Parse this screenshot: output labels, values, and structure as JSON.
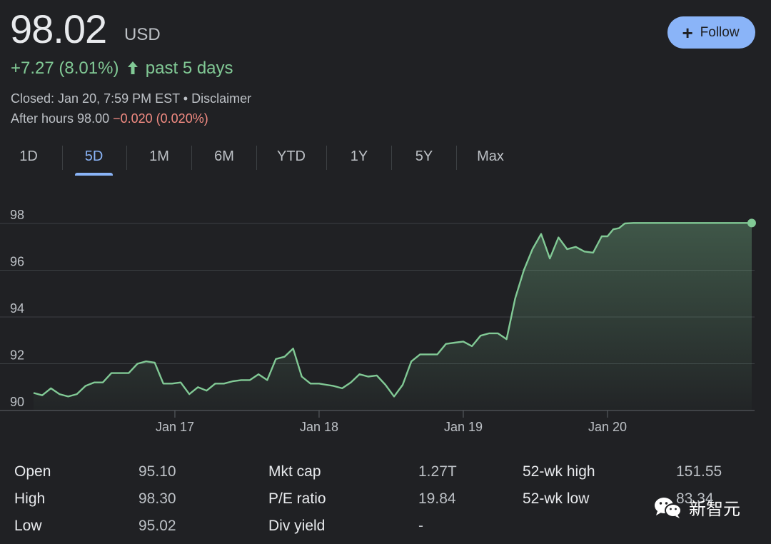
{
  "quote": {
    "price": "98.02",
    "currency": "USD",
    "change": "+7.27 (8.01%)",
    "period": "past 5 days",
    "closed_text": "Closed: Jan 20, 7:59 PM EST • Disclaimer",
    "after_hours_label": "After hours 98.00",
    "after_hours_change": "−0.020 (0.020%)"
  },
  "follow_button": {
    "label": "Follow"
  },
  "tabs": [
    {
      "label": "1D"
    },
    {
      "label": "5D"
    },
    {
      "label": "1M"
    },
    {
      "label": "6M"
    },
    {
      "label": "YTD"
    },
    {
      "label": "1Y"
    },
    {
      "label": "5Y"
    },
    {
      "label": "Max"
    }
  ],
  "active_tab": "5D",
  "stats": {
    "col1": [
      {
        "label": "Open",
        "value": "95.10"
      },
      {
        "label": "High",
        "value": "98.30"
      },
      {
        "label": "Low",
        "value": "95.02"
      }
    ],
    "col2": [
      {
        "label": "Mkt cap",
        "value": "1.27T"
      },
      {
        "label": "P/E ratio",
        "value": "19.84"
      },
      {
        "label": "Div yield",
        "value": "-"
      }
    ],
    "col3": [
      {
        "label": "52-wk high",
        "value": "151.55"
      },
      {
        "label": "52-wk low",
        "value": "83.34"
      }
    ]
  },
  "watermark": {
    "text": "新智元"
  },
  "colors": {
    "background": "#202124",
    "line": "#81c995",
    "accent": "#8ab4f8",
    "negative": "#f28b82",
    "grid": "#5f6368"
  },
  "chart_data": {
    "type": "line",
    "title": "",
    "xlabel": "",
    "ylabel": "",
    "ylim": [
      90,
      98
    ],
    "yticks": [
      90,
      92,
      94,
      96,
      98
    ],
    "xlim": [
      -0.99,
      4.02
    ],
    "xtick_labels": [
      {
        "x": 0,
        "label": "Jan 17"
      },
      {
        "x": 1,
        "label": "Jan 18"
      },
      {
        "x": 2,
        "label": "Jan 19"
      },
      {
        "x": 3,
        "label": "Jan 20"
      }
    ],
    "series": [
      {
        "name": "Price",
        "x": [
          -0.98,
          -0.92,
          -0.86,
          -0.8,
          -0.74,
          -0.68,
          -0.62,
          -0.56,
          -0.5,
          -0.44,
          -0.38,
          -0.32,
          -0.26,
          -0.2,
          -0.14,
          -0.08,
          -0.02,
          0.04,
          0.1,
          0.16,
          0.22,
          0.28,
          0.34,
          0.4,
          0.46,
          0.52,
          0.58,
          0.64,
          0.7,
          0.76,
          0.82,
          0.88,
          0.94,
          1.0,
          1.05,
          1.1,
          1.16,
          1.22,
          1.28,
          1.34,
          1.4,
          1.46,
          1.52,
          1.58,
          1.64,
          1.7,
          1.76,
          1.82,
          1.88,
          1.94,
          2.0,
          2.06,
          2.12,
          2.18,
          2.24,
          2.3,
          2.36,
          2.42,
          2.48,
          2.54,
          2.6,
          2.66,
          2.72,
          2.78,
          2.84,
          2.9,
          2.96,
          3.0,
          3.04,
          3.08,
          3.12,
          3.18,
          3.26,
          3.32,
          3.4,
          3.48,
          3.56,
          3.62,
          3.7,
          3.76,
          3.82,
          3.9,
          3.96,
          4.0
        ],
        "values": [
          90.75,
          90.65,
          90.95,
          90.7,
          90.6,
          90.7,
          91.05,
          91.2,
          91.2,
          91.6,
          91.6,
          91.6,
          92.0,
          92.1,
          92.05,
          91.15,
          91.15,
          91.2,
          90.7,
          91.0,
          90.85,
          91.15,
          91.15,
          91.25,
          91.3,
          91.3,
          91.55,
          91.3,
          92.2,
          92.3,
          92.65,
          91.45,
          91.15,
          91.15,
          91.1,
          91.05,
          90.95,
          91.2,
          91.55,
          91.45,
          91.5,
          91.1,
          90.6,
          91.1,
          92.1,
          92.4,
          92.4,
          92.4,
          92.85,
          92.9,
          92.95,
          92.75,
          93.2,
          93.3,
          93.3,
          93.05,
          94.8,
          96.0,
          96.9,
          97.55,
          96.5,
          97.4,
          96.9,
          97.0,
          96.8,
          96.75,
          97.45,
          97.45,
          97.75,
          97.8,
          98.0,
          98.02,
          98.02,
          98.02,
          98.02,
          98.02,
          98.02,
          98.02,
          98.02,
          98.02,
          98.02,
          98.02,
          98.02,
          98.02
        ]
      }
    ],
    "last_point_marker": true,
    "grid": true
  }
}
